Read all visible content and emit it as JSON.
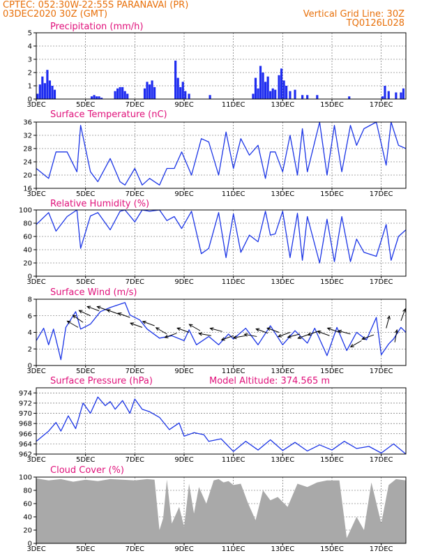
{
  "header": {
    "line1": "CPTEC:   052:30W-22:55S   PARANAVAI (PR)",
    "line2": "03DEC2020 30Z (GMT)",
    "grid_note": "Vertical Grid Line: 30Z",
    "model_code": "TQ0126L028"
  },
  "x_axis": {
    "labels": [
      "3DEC",
      "5DEC",
      "7DEC",
      "9DEC",
      "11DEC",
      "13DEC",
      "15DEC",
      "17DEC"
    ],
    "label_days": [
      0,
      2,
      4,
      6,
      8,
      10,
      12,
      14
    ],
    "day_range": [
      0,
      15
    ]
  },
  "model_altitude": "Model Altitude: 374.565 m",
  "colors": {
    "header": "#e8700a",
    "panel_title": "#e0107a",
    "line": "#1a34e6",
    "bar": "#1e2cf0",
    "cloud": "#a9a9a9",
    "arrow": "#000000"
  },
  "chart_data": [
    {
      "type": "bar",
      "title": "Precipitation (mm/h)",
      "ylim": [
        0,
        5
      ],
      "yticks": [
        0,
        1,
        2,
        3,
        4,
        5
      ],
      "x_days": [
        0.05,
        0.15,
        0.25,
        0.35,
        0.45,
        0.55,
        0.65,
        0.75,
        2.25,
        2.35,
        2.45,
        2.55,
        2.65,
        3.2,
        3.3,
        3.4,
        3.5,
        3.6,
        3.7,
        4.4,
        4.5,
        4.6,
        4.7,
        4.8,
        5.65,
        5.75,
        5.85,
        5.95,
        6.05,
        6.2,
        7.05,
        8.8,
        8.9,
        9.0,
        9.1,
        9.2,
        9.3,
        9.4,
        9.5,
        9.6,
        9.7,
        9.85,
        9.95,
        10.05,
        10.15,
        10.3,
        10.5,
        10.8,
        11.0,
        11.4,
        12.7,
        14.05,
        14.15,
        14.3,
        14.6,
        14.8,
        14.9
      ],
      "values": [
        0.4,
        1.1,
        1.7,
        1.2,
        2.2,
        1.4,
        1.0,
        0.7,
        0.2,
        0.3,
        0.2,
        0.2,
        0.1,
        0.6,
        0.8,
        0.9,
        0.9,
        0.6,
        0.4,
        0.8,
        1.3,
        1.1,
        1.4,
        0.9,
        2.9,
        1.6,
        0.9,
        1.3,
        0.6,
        0.4,
        0.3,
        0.4,
        1.6,
        0.8,
        2.5,
        2.0,
        1.3,
        1.7,
        0.6,
        0.8,
        0.7,
        1.8,
        2.3,
        1.4,
        1.0,
        0.6,
        0.7,
        0.3,
        0.3,
        0.3,
        0.2,
        0.2,
        1.0,
        0.6,
        0.5,
        0.5,
        0.8
      ]
    },
    {
      "type": "line",
      "title": "Surface Temperature (nC)",
      "ylim": [
        16,
        36
      ],
      "yticks": [
        16,
        20,
        24,
        28,
        32,
        36
      ],
      "x_days": [
        0,
        0.5,
        0.8,
        1.25,
        1.65,
        1.8,
        2.2,
        2.5,
        3.0,
        3.4,
        3.6,
        4.0,
        4.3,
        4.6,
        5.0,
        5.3,
        5.6,
        5.9,
        6.3,
        6.7,
        7.0,
        7.4,
        7.7,
        8.0,
        8.3,
        8.65,
        9.0,
        9.3,
        9.5,
        9.7,
        10.0,
        10.3,
        10.6,
        10.8,
        11.0,
        11.5,
        11.8,
        12.1,
        12.4,
        12.75,
        13.0,
        13.3,
        13.8,
        14.2,
        14.4,
        14.7,
        15.0
      ],
      "values": [
        22,
        19,
        27,
        27,
        21,
        35,
        21,
        18,
        25,
        18,
        17,
        22,
        17,
        19,
        17,
        22,
        22,
        27,
        20,
        31,
        30,
        20,
        33,
        22,
        31,
        26,
        29,
        19,
        27,
        27,
        21,
        32,
        20,
        34,
        21,
        36,
        20,
        35,
        21,
        35,
        29,
        34,
        36,
        23,
        36,
        29,
        28
      ]
    },
    {
      "type": "line",
      "title": "Relative Humidity (%)",
      "ylim": [
        0,
        100
      ],
      "yticks": [
        0,
        20,
        40,
        60,
        80,
        100
      ],
      "x_days": [
        0,
        0.5,
        0.8,
        1.25,
        1.65,
        1.8,
        2.2,
        2.5,
        3.0,
        3.4,
        3.6,
        4.0,
        4.3,
        4.6,
        5.0,
        5.3,
        5.6,
        5.9,
        6.3,
        6.7,
        7.0,
        7.4,
        7.7,
        8.0,
        8.3,
        8.65,
        9.0,
        9.3,
        9.5,
        9.7,
        10.0,
        10.3,
        10.6,
        10.8,
        11.0,
        11.5,
        11.8,
        12.1,
        12.4,
        12.75,
        13.0,
        13.3,
        13.8,
        14.2,
        14.4,
        14.7,
        15.0
      ],
      "values": [
        78,
        96,
        68,
        90,
        100,
        42,
        91,
        96,
        70,
        98,
        100,
        82,
        100,
        98,
        100,
        84,
        90,
        72,
        98,
        34,
        42,
        96,
        28,
        94,
        36,
        62,
        52,
        98,
        62,
        64,
        98,
        28,
        95,
        24,
        90,
        20,
        86,
        22,
        90,
        22,
        56,
        36,
        30,
        78,
        24,
        60,
        70
      ]
    },
    {
      "type": "line",
      "title": "Surface Wind (m/s)",
      "ylim": [
        0,
        8
      ],
      "yticks": [
        0,
        2,
        4,
        6,
        8
      ],
      "x_days": [
        0,
        0.3,
        0.5,
        0.7,
        1.0,
        1.2,
        1.6,
        1.8,
        2.2,
        2.6,
        3.0,
        3.6,
        3.8,
        4.2,
        4.5,
        5.0,
        5.5,
        6.0,
        6.2,
        6.5,
        7.0,
        7.4,
        7.8,
        8.0,
        8.5,
        9.0,
        9.5,
        10.0,
        10.5,
        11.0,
        11.3,
        11.8,
        12.2,
        12.6,
        13.0,
        13.4,
        13.8,
        14.0,
        14.3,
        14.5,
        14.8,
        15.0
      ],
      "values": [
        3,
        4.5,
        2.5,
        4.4,
        0.7,
        4.6,
        6.5,
        4.4,
        5.0,
        6.5,
        7.0,
        7.6,
        6.1,
        5.5,
        4.4,
        3.3,
        3.6,
        3.0,
        4.3,
        2.5,
        3.5,
        2.5,
        3.8,
        3.2,
        4.5,
        2.5,
        4.8,
        2.5,
        4.2,
        2.7,
        4.5,
        1.2,
        4.6,
        1.8,
        4.0,
        3.1,
        5.8,
        1.3,
        2.6,
        3.2,
        4.6,
        4.0
      ]
    },
    {
      "type": "line",
      "title": "Surface Pressure (hPa)",
      "ylim": [
        962,
        975
      ],
      "yticks": [
        962,
        964,
        966,
        968,
        970,
        972,
        974
      ],
      "x_days": [
        0,
        0.5,
        0.8,
        1.0,
        1.3,
        1.6,
        1.9,
        2.2,
        2.5,
        2.8,
        3.0,
        3.2,
        3.5,
        3.8,
        4.0,
        4.3,
        4.6,
        5.0,
        5.4,
        5.8,
        6.0,
        6.4,
        6.8,
        7.0,
        7.5,
        8.0,
        8.5,
        9.0,
        9.5,
        10.0,
        10.5,
        11.0,
        11.5,
        12.0,
        12.5,
        13.0,
        13.5,
        14.0,
        14.5,
        15.0
      ],
      "values": [
        964.5,
        966.5,
        968.2,
        966.5,
        969.5,
        967.0,
        972.0,
        970.0,
        973.2,
        971.5,
        972.3,
        970.8,
        972.5,
        970.0,
        972.8,
        970.8,
        970.3,
        969.2,
        966.8,
        968.1,
        965.5,
        966.2,
        965.8,
        964.5,
        965.0,
        962.5,
        964.5,
        962.8,
        964.8,
        962.7,
        964.3,
        962.6,
        963.8,
        962.8,
        964.5,
        963.1,
        963.5,
        962.2,
        964.0,
        962.0
      ]
    },
    {
      "type": "area",
      "title": "Cloud Cover (%)",
      "ylim": [
        0,
        100
      ],
      "yticks": [
        0,
        20,
        40,
        60,
        80,
        100
      ],
      "x_days": [
        0,
        0.5,
        1.0,
        1.5,
        2.0,
        2.5,
        3.0,
        3.5,
        4.0,
        4.5,
        4.8,
        5.0,
        5.15,
        5.3,
        5.5,
        5.8,
        6.0,
        6.2,
        6.4,
        6.6,
        6.9,
        7.2,
        7.4,
        7.6,
        7.8,
        8.0,
        8.3,
        8.6,
        8.9,
        9.2,
        9.5,
        9.8,
        10.2,
        10.6,
        11.0,
        11.4,
        11.8,
        12.1,
        12.3,
        12.6,
        13.0,
        13.3,
        13.6,
        14.0,
        14.3,
        14.6,
        15.0
      ],
      "values": [
        98,
        95,
        97,
        93,
        96,
        94,
        97,
        96,
        95,
        97,
        96,
        20,
        38,
        96,
        30,
        55,
        25,
        90,
        45,
        85,
        60,
        95,
        97,
        92,
        94,
        88,
        90,
        60,
        35,
        80,
        65,
        70,
        55,
        90,
        85,
        92,
        95,
        95,
        95,
        8,
        40,
        20,
        92,
        30,
        88,
        97,
        95
      ]
    }
  ],
  "wind_arrows": {
    "x_days": [
      1.7,
      1.9,
      2.2,
      2.55,
      2.95,
      3.35,
      3.8,
      4.3,
      4.8,
      5.3,
      5.7,
      6.2,
      6.65,
      7.1,
      7.55,
      8.0,
      8.5,
      8.95,
      9.4,
      9.85,
      10.3,
      10.7,
      11.1,
      11.5,
      11.9,
      12.3,
      12.75,
      13.2,
      13.7,
      14.2,
      14.55,
      14.8
    ],
    "speeds": [
      4.6,
      5.2,
      6.0,
      6.6,
      6.6,
      6.2,
      5.8,
      4.6,
      4.8,
      3.8,
      3.9,
      4.0,
      4.2,
      3.6,
      4.1,
      3.6,
      3.6,
      3.5,
      3.9,
      4.0,
      4.0,
      3.8,
      3.8,
      4.2,
      3.6,
      4.0,
      3.8,
      3.0,
      3.7,
      4.5,
      2.8,
      5.4
    ],
    "dir_deg": [
      150,
      145,
      155,
      160,
      160,
      160,
      160,
      160,
      160,
      150,
      200,
      160,
      150,
      170,
      165,
      200,
      190,
      170,
      160,
      160,
      200,
      195,
      200,
      200,
      160,
      160,
      165,
      210,
      200,
      75,
      80,
      70
    ]
  }
}
